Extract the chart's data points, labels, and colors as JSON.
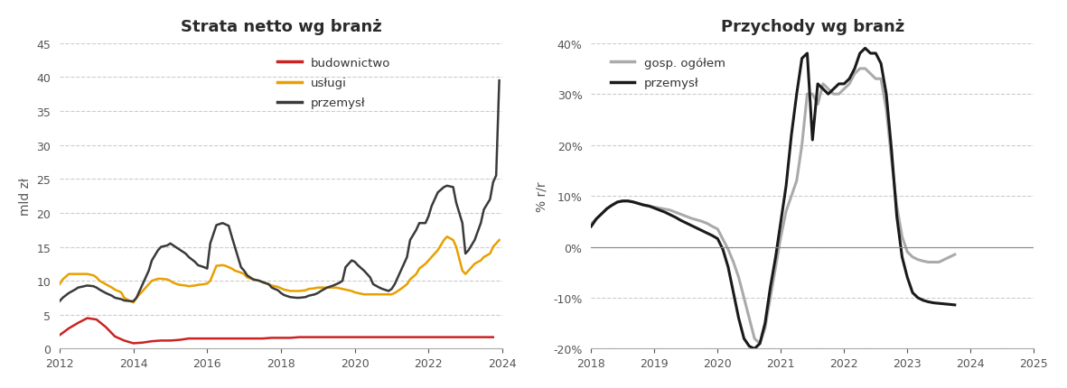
{
  "left_title": "Strata netto wg branż",
  "right_title": "Przychody wg branż",
  "left_ylabel": "mld zł",
  "right_ylabel": "% r/r",
  "left_ylim": [
    0,
    45
  ],
  "right_ylim": [
    -0.2,
    0.4
  ],
  "left_yticks": [
    0,
    5,
    10,
    15,
    20,
    25,
    30,
    35,
    40,
    45
  ],
  "right_yticks": [
    -0.2,
    -0.1,
    0.0,
    0.1,
    0.2,
    0.3,
    0.4
  ],
  "left_legend": [
    "budownictwo",
    "usługi",
    "przemysł"
  ],
  "left_colors": [
    "#cc2222",
    "#e8a000",
    "#3a3a3a"
  ],
  "right_legend": [
    "gosp. ogółem",
    "przemysł"
  ],
  "right_colors": [
    "#aaaaaa",
    "#1a1a1a"
  ],
  "budownictwo_x": [
    2012.0,
    2012.25,
    2012.5,
    2012.75,
    2013.0,
    2013.25,
    2013.5,
    2013.75,
    2014.0,
    2014.25,
    2014.5,
    2014.75,
    2015.0,
    2015.25,
    2015.5,
    2015.75,
    2016.0,
    2016.25,
    2016.5,
    2016.75,
    2017.0,
    2017.25,
    2017.5,
    2017.75,
    2018.0,
    2018.25,
    2018.5,
    2018.75,
    2019.0,
    2019.25,
    2019.5,
    2019.75,
    2020.0,
    2020.25,
    2020.5,
    2020.75,
    2021.0,
    2021.25,
    2021.5,
    2021.75,
    2022.0,
    2022.25,
    2022.5,
    2022.75,
    2023.0,
    2023.25,
    2023.5,
    2023.75
  ],
  "budownictwo_y": [
    2.0,
    3.0,
    3.8,
    4.5,
    4.3,
    3.2,
    1.8,
    1.2,
    0.8,
    0.9,
    1.1,
    1.2,
    1.2,
    1.3,
    1.5,
    1.5,
    1.5,
    1.5,
    1.5,
    1.5,
    1.5,
    1.5,
    1.5,
    1.6,
    1.6,
    1.6,
    1.7,
    1.7,
    1.7,
    1.7,
    1.7,
    1.7,
    1.7,
    1.7,
    1.7,
    1.7,
    1.7,
    1.7,
    1.7,
    1.7,
    1.7,
    1.7,
    1.7,
    1.7,
    1.7,
    1.7,
    1.7,
    1.7
  ],
  "uslugi_x": [
    2012.0,
    2012.083,
    2012.25,
    2012.417,
    2012.5,
    2012.667,
    2012.75,
    2012.917,
    2013.0,
    2013.083,
    2013.25,
    2013.417,
    2013.5,
    2013.667,
    2013.75,
    2013.917,
    2014.0,
    2014.083,
    2014.25,
    2014.417,
    2014.5,
    2014.667,
    2014.75,
    2014.917,
    2015.0,
    2015.083,
    2015.25,
    2015.417,
    2015.5,
    2015.667,
    2015.75,
    2015.917,
    2016.0,
    2016.083,
    2016.25,
    2016.417,
    2016.5,
    2016.667,
    2016.75,
    2016.917,
    2017.0,
    2017.083,
    2017.25,
    2017.417,
    2017.5,
    2017.667,
    2017.75,
    2017.917,
    2018.0,
    2018.083,
    2018.25,
    2018.417,
    2018.5,
    2018.667,
    2018.75,
    2018.917,
    2019.0,
    2019.083,
    2019.25,
    2019.417,
    2019.5,
    2019.667,
    2019.75,
    2019.917,
    2020.0,
    2020.083,
    2020.25,
    2020.417,
    2020.5,
    2020.667,
    2020.75,
    2020.917,
    2021.0,
    2021.083,
    2021.25,
    2021.417,
    2021.5,
    2021.667,
    2021.75,
    2021.917,
    2022.0,
    2022.083,
    2022.25,
    2022.417,
    2022.5,
    2022.667,
    2022.75,
    2022.917,
    2023.0,
    2023.083,
    2023.25,
    2023.417,
    2023.5,
    2023.667,
    2023.75,
    2023.917
  ],
  "uslugi_y": [
    9.5,
    10.2,
    11.0,
    11.0,
    11.0,
    11.0,
    11.0,
    10.8,
    10.5,
    10.0,
    9.5,
    9.0,
    8.7,
    8.3,
    7.5,
    7.0,
    6.8,
    7.5,
    8.5,
    9.5,
    10.0,
    10.3,
    10.3,
    10.2,
    10.0,
    9.7,
    9.4,
    9.3,
    9.2,
    9.3,
    9.4,
    9.5,
    9.6,
    10.0,
    12.2,
    12.3,
    12.2,
    11.8,
    11.5,
    11.2,
    11.0,
    10.5,
    10.2,
    10.0,
    9.8,
    9.5,
    9.3,
    9.1,
    8.9,
    8.7,
    8.5,
    8.5,
    8.5,
    8.6,
    8.8,
    8.9,
    9.0,
    9.0,
    9.0,
    9.0,
    9.0,
    8.8,
    8.7,
    8.5,
    8.3,
    8.2,
    8.0,
    8.0,
    8.0,
    8.0,
    8.0,
    8.0,
    8.0,
    8.2,
    8.8,
    9.5,
    10.2,
    11.0,
    11.8,
    12.5,
    13.0,
    13.5,
    14.5,
    16.0,
    16.5,
    16.0,
    15.0,
    11.5,
    11.0,
    11.5,
    12.5,
    13.0,
    13.5,
    14.0,
    15.0,
    16.0
  ],
  "przemysl_x": [
    2012.0,
    2012.083,
    2012.25,
    2012.417,
    2012.5,
    2012.667,
    2012.75,
    2012.917,
    2013.0,
    2013.083,
    2013.25,
    2013.417,
    2013.5,
    2013.667,
    2013.75,
    2013.917,
    2014.0,
    2014.083,
    2014.25,
    2014.417,
    2014.5,
    2014.667,
    2014.75,
    2014.917,
    2015.0,
    2015.083,
    2015.25,
    2015.417,
    2015.5,
    2015.667,
    2015.75,
    2015.917,
    2016.0,
    2016.083,
    2016.25,
    2016.417,
    2016.5,
    2016.583,
    2016.667,
    2016.75,
    2016.917,
    2017.0,
    2017.083,
    2017.25,
    2017.417,
    2017.5,
    2017.667,
    2017.75,
    2017.917,
    2018.0,
    2018.083,
    2018.25,
    2018.417,
    2018.5,
    2018.667,
    2018.75,
    2018.917,
    2019.0,
    2019.083,
    2019.25,
    2019.417,
    2019.5,
    2019.583,
    2019.667,
    2019.75,
    2019.917,
    2020.0,
    2020.083,
    2020.25,
    2020.417,
    2020.5,
    2020.667,
    2020.75,
    2020.917,
    2021.0,
    2021.083,
    2021.25,
    2021.417,
    2021.5,
    2021.667,
    2021.75,
    2021.917,
    2022.0,
    2022.083,
    2022.25,
    2022.417,
    2022.5,
    2022.667,
    2022.75,
    2022.917,
    2023.0,
    2023.083,
    2023.25,
    2023.417,
    2023.5,
    2023.667,
    2023.75,
    2023.833,
    2023.917
  ],
  "przemysl_y": [
    7.0,
    7.5,
    8.2,
    8.7,
    9.0,
    9.2,
    9.3,
    9.2,
    9.0,
    8.7,
    8.2,
    7.8,
    7.5,
    7.3,
    7.1,
    7.0,
    7.0,
    7.5,
    9.5,
    11.5,
    13.0,
    14.5,
    15.0,
    15.2,
    15.5,
    15.2,
    14.6,
    14.0,
    13.5,
    12.8,
    12.3,
    12.0,
    11.8,
    15.5,
    18.2,
    18.5,
    18.3,
    18.1,
    16.5,
    15.0,
    12.0,
    11.5,
    10.8,
    10.2,
    10.0,
    9.8,
    9.5,
    9.0,
    8.6,
    8.2,
    7.9,
    7.6,
    7.5,
    7.5,
    7.6,
    7.8,
    8.0,
    8.2,
    8.5,
    9.0,
    9.3,
    9.5,
    9.7,
    10.0,
    12.0,
    13.0,
    12.8,
    12.3,
    11.5,
    10.5,
    9.5,
    9.0,
    8.8,
    8.5,
    8.8,
    9.5,
    11.5,
    13.5,
    16.0,
    17.5,
    18.5,
    18.5,
    19.5,
    21.0,
    23.0,
    23.8,
    24.0,
    23.8,
    21.5,
    18.5,
    14.0,
    14.5,
    16.0,
    18.5,
    20.5,
    22.0,
    24.5,
    25.5,
    39.5
  ],
  "gosp_x": [
    2018.0,
    2018.083,
    2018.167,
    2018.25,
    2018.333,
    2018.417,
    2018.5,
    2018.583,
    2018.667,
    2018.75,
    2018.833,
    2018.917,
    2019.0,
    2019.083,
    2019.167,
    2019.25,
    2019.333,
    2019.417,
    2019.5,
    2019.583,
    2019.667,
    2019.75,
    2019.833,
    2019.917,
    2020.0,
    2020.083,
    2020.167,
    2020.25,
    2020.333,
    2020.417,
    2020.5,
    2020.583,
    2020.667,
    2020.75,
    2020.833,
    2020.917,
    2021.0,
    2021.083,
    2021.167,
    2021.25,
    2021.333,
    2021.417,
    2021.5,
    2021.583,
    2021.667,
    2021.75,
    2021.833,
    2021.917,
    2022.0,
    2022.083,
    2022.167,
    2022.25,
    2022.333,
    2022.417,
    2022.5,
    2022.583,
    2022.667,
    2022.75,
    2022.833,
    2022.917,
    2023.0,
    2023.083,
    2023.167,
    2023.25,
    2023.333,
    2023.417,
    2023.5,
    2023.583,
    2023.667,
    2023.75
  ],
  "gosp_y": [
    0.045,
    0.055,
    0.065,
    0.075,
    0.082,
    0.088,
    0.09,
    0.09,
    0.088,
    0.085,
    0.082,
    0.08,
    0.078,
    0.076,
    0.074,
    0.072,
    0.068,
    0.064,
    0.06,
    0.056,
    0.053,
    0.05,
    0.046,
    0.04,
    0.035,
    0.015,
    -0.005,
    -0.03,
    -0.06,
    -0.1,
    -0.14,
    -0.18,
    -0.19,
    -0.16,
    -0.1,
    -0.04,
    0.02,
    0.07,
    0.1,
    0.13,
    0.2,
    0.3,
    0.3,
    0.28,
    0.32,
    0.31,
    0.3,
    0.3,
    0.31,
    0.32,
    0.34,
    0.35,
    0.35,
    0.34,
    0.33,
    0.33,
    0.27,
    0.17,
    0.08,
    0.02,
    -0.01,
    -0.02,
    -0.025,
    -0.028,
    -0.03,
    -0.03,
    -0.03,
    -0.025,
    -0.02,
    -0.015
  ],
  "przemysl2_x": [
    2018.0,
    2018.083,
    2018.167,
    2018.25,
    2018.333,
    2018.417,
    2018.5,
    2018.583,
    2018.667,
    2018.75,
    2018.833,
    2018.917,
    2019.0,
    2019.083,
    2019.167,
    2019.25,
    2019.333,
    2019.417,
    2019.5,
    2019.583,
    2019.667,
    2019.75,
    2019.833,
    2019.917,
    2020.0,
    2020.083,
    2020.167,
    2020.25,
    2020.333,
    2020.417,
    2020.5,
    2020.583,
    2020.667,
    2020.75,
    2020.833,
    2020.917,
    2021.0,
    2021.083,
    2021.167,
    2021.25,
    2021.333,
    2021.417,
    2021.5,
    2021.583,
    2021.667,
    2021.75,
    2021.833,
    2021.917,
    2022.0,
    2022.083,
    2022.167,
    2022.25,
    2022.333,
    2022.417,
    2022.5,
    2022.583,
    2022.667,
    2022.75,
    2022.833,
    2022.917,
    2023.0,
    2023.083,
    2023.167,
    2023.25,
    2023.333,
    2023.417,
    2023.5,
    2023.583,
    2023.667,
    2023.75
  ],
  "przemysl2_y": [
    0.04,
    0.055,
    0.065,
    0.075,
    0.082,
    0.088,
    0.09,
    0.09,
    0.088,
    0.085,
    0.082,
    0.08,
    0.076,
    0.072,
    0.068,
    0.063,
    0.058,
    0.052,
    0.047,
    0.042,
    0.037,
    0.032,
    0.027,
    0.022,
    0.016,
    -0.005,
    -0.04,
    -0.09,
    -0.14,
    -0.18,
    -0.195,
    -0.2,
    -0.19,
    -0.15,
    -0.08,
    -0.02,
    0.05,
    0.12,
    0.22,
    0.3,
    0.37,
    0.38,
    0.21,
    0.32,
    0.31,
    0.3,
    0.31,
    0.32,
    0.32,
    0.33,
    0.35,
    0.38,
    0.39,
    0.38,
    0.38,
    0.36,
    0.3,
    0.19,
    0.06,
    -0.02,
    -0.06,
    -0.09,
    -0.1,
    -0.105,
    -0.108,
    -0.11,
    -0.111,
    -0.112,
    -0.113,
    -0.114
  ]
}
